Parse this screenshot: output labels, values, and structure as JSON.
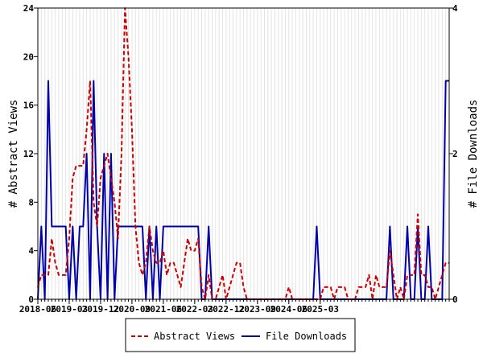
{
  "chart_data": {
    "type": "line",
    "x_start": "2018-06",
    "x_tick_labels": [
      "2018-06",
      "2019-03",
      "2019-12",
      "2020-09",
      "2021-06",
      "2022-03",
      "2022-12",
      "2023-09",
      "2024-06",
      "2025-03"
    ],
    "y_left_label": "# Abstract Views",
    "y_right_label": "# File Downloads",
    "y_left_ticks": [
      "0",
      "4",
      "8",
      "12",
      "16",
      "20",
      "24"
    ],
    "y_right_ticks": [
      "0",
      "2",
      "4"
    ],
    "y_left_range": [
      0,
      24
    ],
    "y_right_range": [
      0,
      4
    ],
    "grid": "vertical",
    "legend_position": "bottom",
    "series": [
      {
        "name": "Abstract Views",
        "axis": "left",
        "color": "#cc0000",
        "style": "dashed",
        "values": [
          1,
          2,
          2,
          2,
          5,
          3,
          2,
          2,
          2,
          5,
          10,
          11,
          11,
          11,
          14,
          18,
          8,
          6,
          10,
          11,
          12,
          10,
          8,
          5,
          12,
          24,
          20,
          14,
          6,
          3,
          2,
          3,
          6,
          4,
          3,
          3,
          4,
          2,
          3,
          3,
          2,
          1,
          3,
          5,
          4,
          4,
          5,
          1,
          0,
          2,
          0,
          0,
          1,
          2,
          0,
          1,
          2,
          3,
          3,
          1,
          0,
          0,
          0,
          0,
          0,
          0,
          0,
          0,
          0,
          0,
          0,
          0,
          1,
          0,
          0,
          0,
          0,
          0,
          0,
          0,
          0,
          0,
          1,
          1,
          1,
          0,
          1,
          1,
          1,
          0,
          0,
          0,
          1,
          1,
          1,
          2,
          0,
          2,
          1,
          1,
          1,
          4,
          2,
          0,
          1,
          0,
          2,
          2,
          2,
          7,
          2,
          2,
          1,
          1,
          0,
          1,
          2,
          3,
          3
        ]
      },
      {
        "name": "File Downloads",
        "axis": "right",
        "color": "#0000aa",
        "style": "solid",
        "values": [
          0,
          1,
          0,
          3,
          1,
          1,
          1,
          1,
          1,
          0,
          1,
          0,
          1,
          1,
          2,
          0,
          3,
          1,
          0,
          2,
          0,
          2,
          0,
          1,
          1,
          1,
          1,
          1,
          1,
          1,
          1,
          0,
          1,
          0,
          1,
          0,
          1,
          1,
          1,
          1,
          1,
          1,
          1,
          1,
          1,
          1,
          1,
          0,
          0,
          1,
          0,
          0,
          0,
          0,
          0,
          0,
          0,
          0,
          0,
          0,
          0,
          0,
          0,
          0,
          0,
          0,
          0,
          0,
          0,
          0,
          0,
          0,
          0,
          0,
          0,
          0,
          0,
          0,
          0,
          0,
          1,
          0,
          0,
          0,
          0,
          0,
          0,
          0,
          0,
          0,
          0,
          0,
          0,
          0,
          0,
          0,
          0,
          0,
          0,
          0,
          0,
          1,
          0,
          0,
          0,
          0,
          1,
          0,
          0,
          1,
          0,
          0,
          1,
          0,
          0,
          0,
          0,
          3,
          3
        ]
      }
    ]
  }
}
